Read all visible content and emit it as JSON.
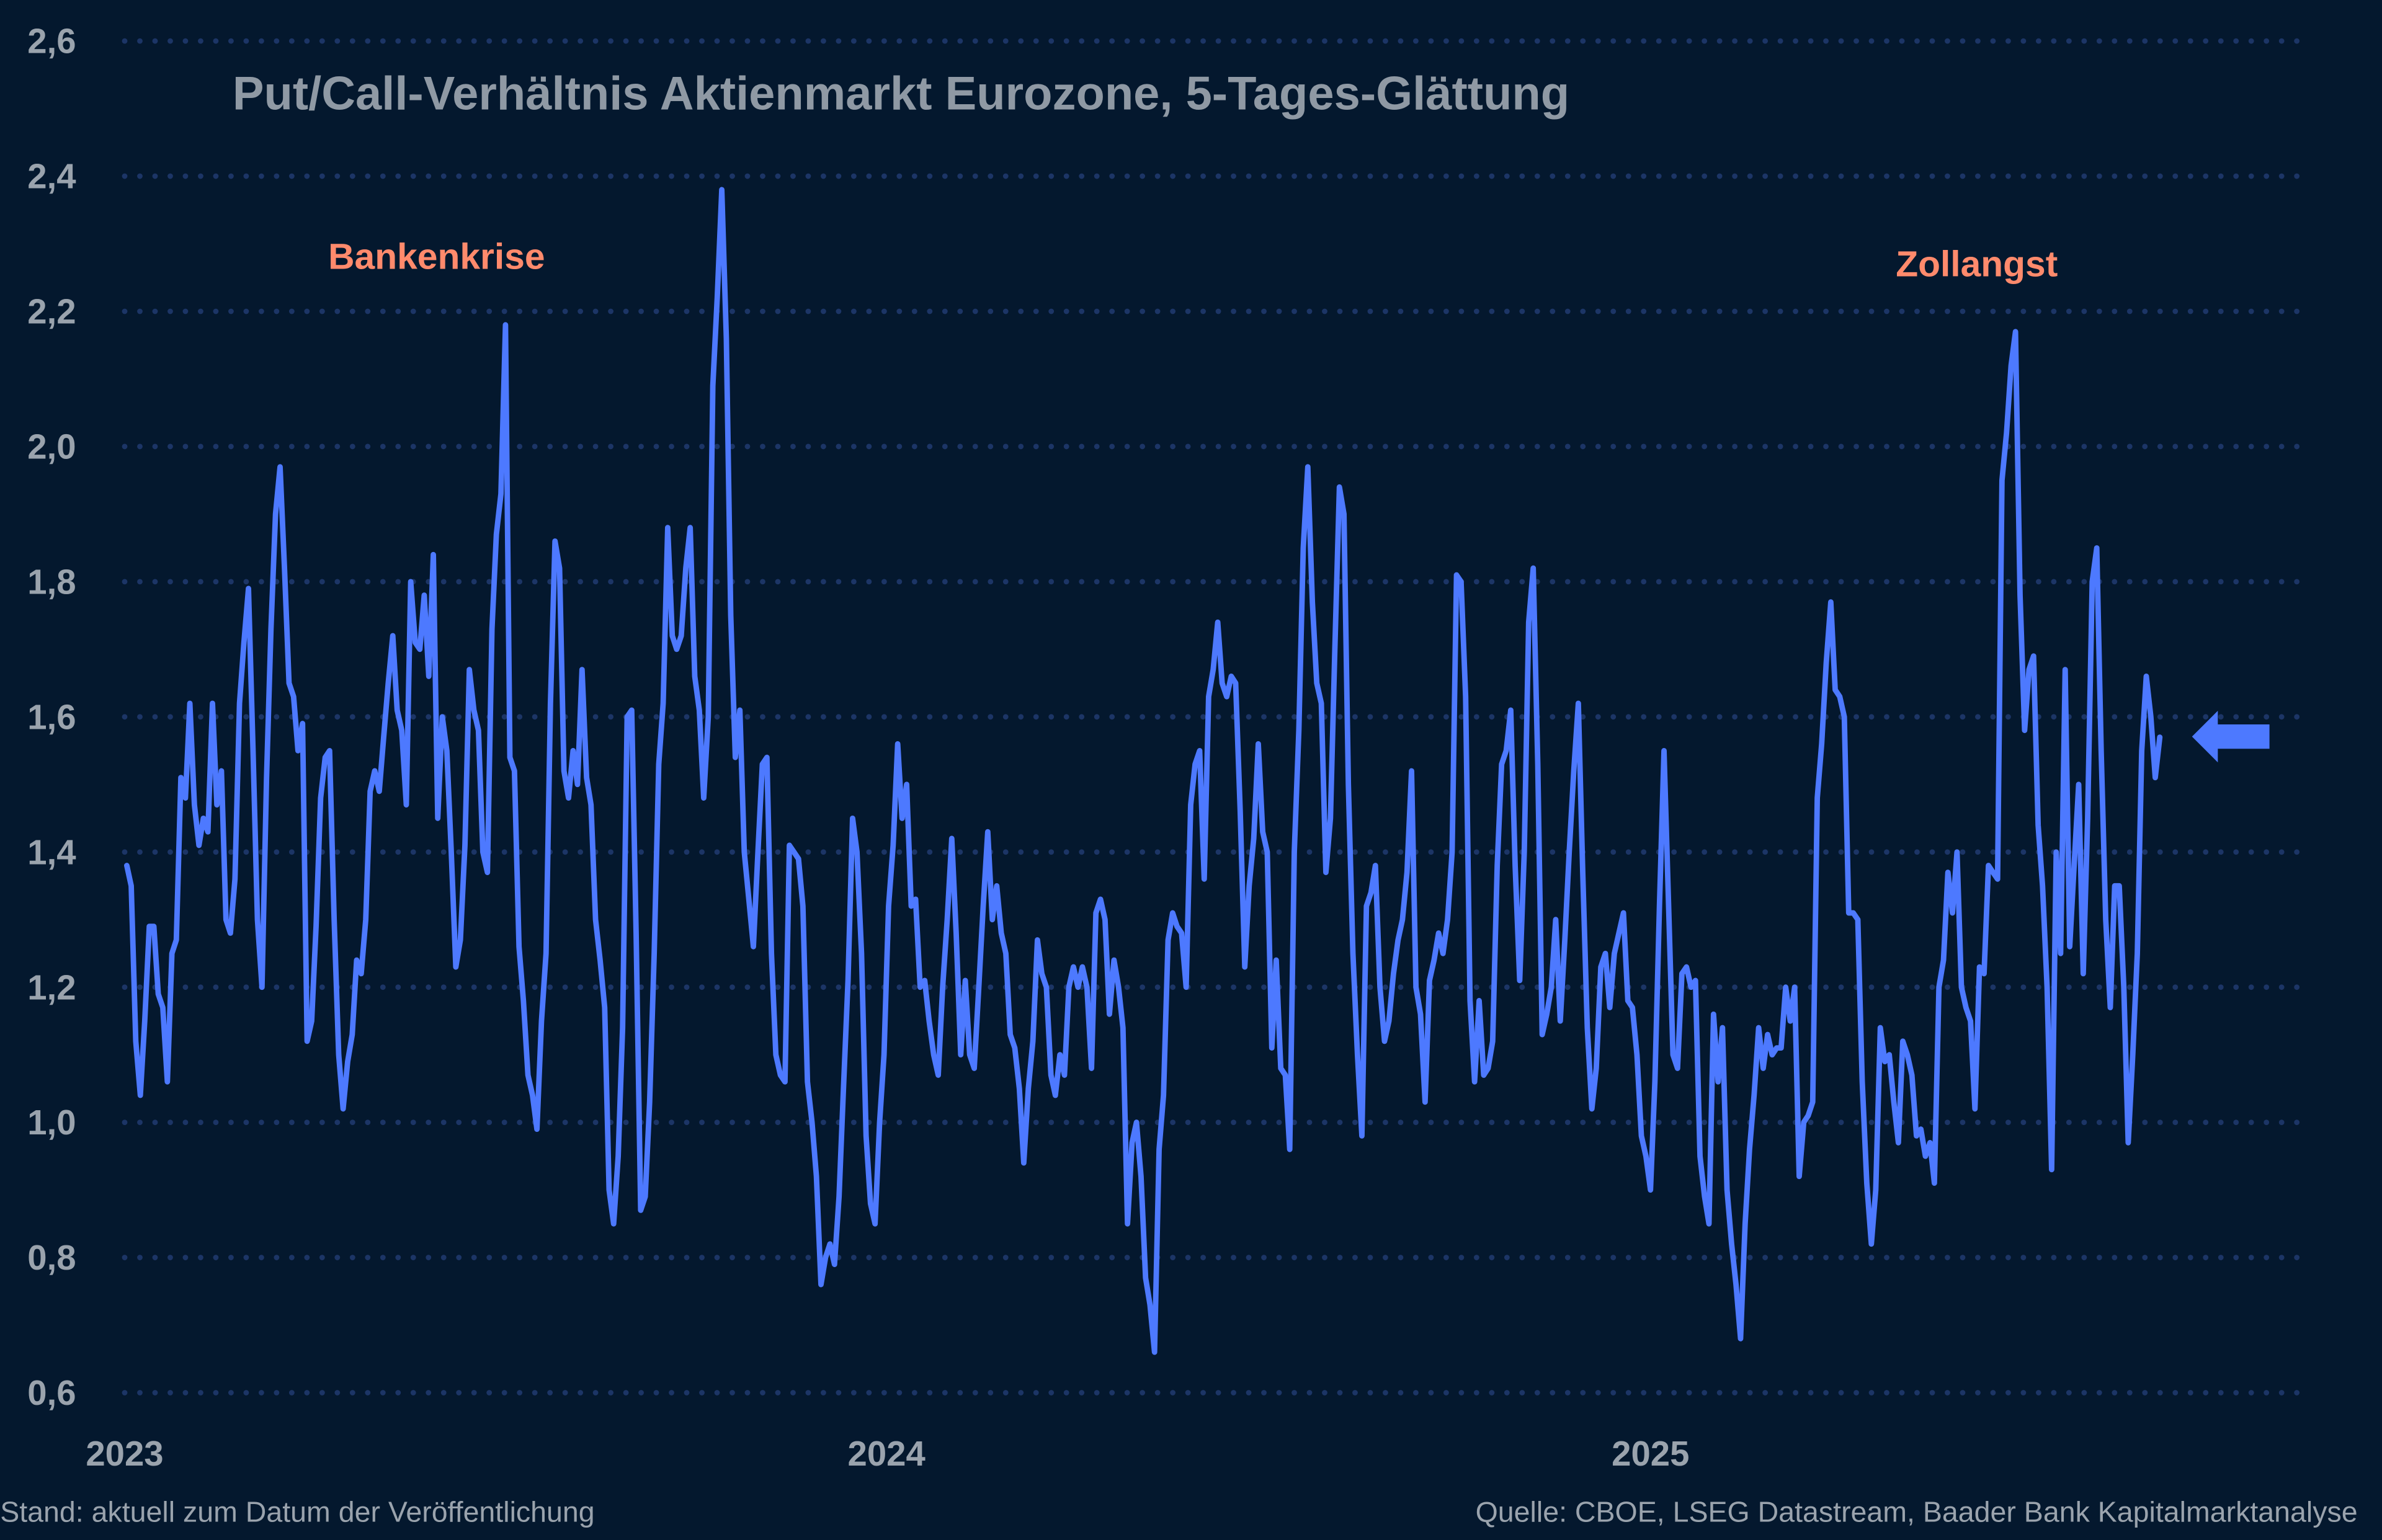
{
  "chart_data": {
    "type": "line",
    "title": "Put/Call-Verhältnis Aktienmarkt Eurozone, 5-Tages-Glättung",
    "xlabel": "",
    "ylabel": "",
    "ylim": [
      0.6,
      2.6
    ],
    "yticks": [
      "2,6",
      "2,4",
      "2,2",
      "2,0",
      "1,8",
      "1,6",
      "1,4",
      "1,2",
      "1,0",
      "0,8",
      "0,6"
    ],
    "ytick_values": [
      2.6,
      2.4,
      2.2,
      2.0,
      1.8,
      1.6,
      1.4,
      1.2,
      1.0,
      0.8,
      0.6
    ],
    "xlim": [
      "2023-01-01",
      "2025-11-11"
    ],
    "xticks": [
      "2023",
      "2024",
      "2025"
    ],
    "grid": "horizontal dotted",
    "legend": "none",
    "colors": {
      "background": "#04182e",
      "line": "#4d79ff",
      "grid": "#1c3566",
      "text": "#9aa3ad",
      "annotation": "#ff8a6c",
      "marker_arrow": "#4d79ff"
    },
    "annotations": [
      {
        "text": "Bankenkrise",
        "date": "2023-05-01",
        "value": 2.17
      },
      {
        "text": "Zollangst",
        "date": "2025-05-15",
        "value": 2.16
      }
    ],
    "latest_marker": {
      "type": "arrow-left",
      "value": 1.57
    },
    "series": [
      {
        "x_first": "2023-01-02",
        "x_last": "2025-09-02",
        "values": [
          1.38,
          1.35,
          1.12,
          1.04,
          1.15,
          1.29,
          1.29,
          1.19,
          1.17,
          1.06,
          1.25,
          1.27,
          1.51,
          1.48,
          1.62,
          1.47,
          1.41,
          1.45,
          1.43,
          1.62,
          1.47,
          1.52,
          1.3,
          1.28,
          1.36,
          1.62,
          1.71,
          1.79,
          1.55,
          1.3,
          1.2,
          1.51,
          1.73,
          1.9,
          1.97,
          1.82,
          1.65,
          1.63,
          1.55,
          1.59,
          1.12,
          1.15,
          1.29,
          1.48,
          1.54,
          1.55,
          1.3,
          1.1,
          1.02,
          1.09,
          1.13,
          1.24,
          1.22,
          1.3,
          1.49,
          1.52,
          1.49,
          1.57,
          1.65,
          1.72,
          1.61,
          1.58,
          1.47,
          1.8,
          1.71,
          1.7,
          1.78,
          1.66,
          1.84,
          1.45,
          1.6,
          1.55,
          1.4,
          1.23,
          1.27,
          1.41,
          1.67,
          1.61,
          1.58,
          1.4,
          1.37,
          1.73,
          1.87,
          1.93,
          2.18,
          1.54,
          1.52,
          1.26,
          1.18,
          1.07,
          1.04,
          0.99,
          1.15,
          1.25,
          1.62,
          1.86,
          1.82,
          1.52,
          1.48,
          1.55,
          1.5,
          1.67,
          1.51,
          1.47,
          1.3,
          1.24,
          1.17,
          0.9,
          0.85,
          0.95,
          1.14,
          1.6,
          1.61,
          1.28,
          0.87,
          0.89,
          1.03,
          1.25,
          1.53,
          1.62,
          1.88,
          1.72,
          1.7,
          1.72,
          1.82,
          1.88,
          1.66,
          1.61,
          1.48,
          1.6,
          2.09,
          2.22,
          2.38,
          2.16,
          1.75,
          1.54,
          1.61,
          1.4,
          1.33,
          1.26,
          1.4,
          1.53,
          1.54,
          1.25,
          1.1,
          1.07,
          1.06,
          1.41,
          1.4,
          1.39,
          1.32,
          1.06,
          1.0,
          0.92,
          0.76,
          0.8,
          0.82,
          0.79,
          0.89,
          1.05,
          1.21,
          1.45,
          1.4,
          1.25,
          0.98,
          0.88,
          0.85,
          1.0,
          1.1,
          1.32,
          1.41,
          1.56,
          1.45,
          1.5,
          1.32,
          1.33,
          1.2,
          1.21,
          1.15,
          1.1,
          1.07,
          1.2,
          1.3,
          1.42,
          1.28,
          1.1,
          1.21,
          1.1,
          1.08,
          1.2,
          1.32,
          1.43,
          1.3,
          1.35,
          1.28,
          1.25,
          1.13,
          1.11,
          1.05,
          0.94,
          1.05,
          1.12,
          1.27,
          1.22,
          1.2,
          1.07,
          1.04,
          1.1,
          1.07,
          1.2,
          1.23,
          1.2,
          1.23,
          1.2,
          1.08,
          1.31,
          1.33,
          1.3,
          1.16,
          1.24,
          1.2,
          1.14,
          0.85,
          0.97,
          1.0,
          0.92,
          0.77,
          0.73,
          0.66,
          0.96,
          1.04,
          1.27,
          1.31,
          1.29,
          1.28,
          1.2,
          1.47,
          1.53,
          1.55,
          1.36,
          1.63,
          1.67,
          1.74,
          1.65,
          1.63,
          1.66,
          1.65,
          1.46,
          1.23,
          1.35,
          1.42,
          1.56,
          1.43,
          1.4,
          1.11,
          1.24,
          1.08,
          1.07,
          0.96,
          1.4,
          1.58,
          1.85,
          1.97,
          1.77,
          1.65,
          1.62,
          1.37,
          1.45,
          1.7,
          1.94,
          1.9,
          1.5,
          1.25,
          1.1,
          0.98,
          1.32,
          1.34,
          1.38,
          1.2,
          1.12,
          1.15,
          1.22,
          1.27,
          1.3,
          1.37,
          1.52,
          1.2,
          1.16,
          1.03,
          1.21,
          1.24,
          1.28,
          1.25,
          1.3,
          1.4,
          1.81,
          1.8,
          1.63,
          1.18,
          1.06,
          1.18,
          1.07,
          1.08,
          1.12,
          1.38,
          1.53,
          1.55,
          1.61,
          1.38,
          1.21,
          1.4,
          1.74,
          1.82,
          1.53,
          1.13,
          1.16,
          1.2,
          1.3,
          1.15,
          1.27,
          1.4,
          1.52,
          1.62,
          1.37,
          1.14,
          1.02,
          1.08,
          1.23,
          1.25,
          1.17,
          1.25,
          1.28,
          1.31,
          1.18,
          1.17,
          1.1,
          0.98,
          0.95,
          0.9,
          1.06,
          1.32,
          1.55,
          1.33,
          1.1,
          1.08,
          1.22,
          1.23,
          1.2,
          1.21,
          0.95,
          0.89,
          0.85,
          1.16,
          1.06,
          1.14,
          0.9,
          0.82,
          0.76,
          0.68,
          0.85,
          0.96,
          1.04,
          1.14,
          1.08,
          1.13,
          1.1,
          1.11,
          1.11,
          1.2,
          1.15,
          1.2,
          0.92,
          1.0,
          1.01,
          1.03,
          1.48,
          1.56,
          1.68,
          1.77,
          1.64,
          1.63,
          1.6,
          1.31,
          1.31,
          1.3,
          1.06,
          0.91,
          0.82,
          0.9,
          1.14,
          1.09,
          1.1,
          1.03,
          0.97,
          1.12,
          1.1,
          1.07,
          0.98,
          0.99,
          0.95,
          0.97,
          0.91,
          1.2,
          1.24,
          1.37,
          1.31,
          1.4,
          1.2,
          1.17,
          1.15,
          1.02,
          1.23,
          1.22,
          1.38,
          1.37,
          1.36,
          1.95,
          2.02,
          2.12,
          2.17,
          1.78,
          1.58,
          1.67,
          1.69,
          1.44,
          1.35,
          1.2,
          0.93,
          1.4,
          1.25,
          1.67,
          1.26,
          1.38,
          1.5,
          1.22,
          1.45,
          1.8,
          1.85,
          1.55,
          1.3,
          1.17,
          1.35,
          1.35,
          1.2,
          0.97,
          1.1,
          1.25,
          1.55,
          1.66,
          1.6,
          1.51,
          1.57
        ]
      }
    ]
  },
  "footer": {
    "left": "Stand: aktuell zum Datum der Veröffentlichung",
    "right": "Quelle: CBOE, LSEG Datastream, Baader Bank Kapitalmarktanalyse"
  }
}
